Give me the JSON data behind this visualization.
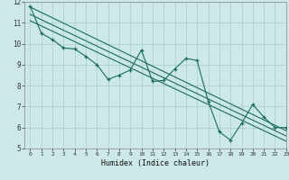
{
  "xlabel": "Humidex (Indice chaleur)",
  "xlim": [
    -0.5,
    23.0
  ],
  "ylim": [
    5,
    12
  ],
  "yticks": [
    5,
    6,
    7,
    8,
    9,
    10,
    11,
    12
  ],
  "xticks": [
    0,
    1,
    2,
    3,
    4,
    5,
    6,
    7,
    8,
    9,
    10,
    11,
    12,
    13,
    14,
    15,
    16,
    17,
    18,
    19,
    20,
    21,
    22,
    23
  ],
  "background_color": "#cce8e8",
  "grid_color": "#aacccc",
  "line_color": "#1a6b5e",
  "main_series_x": [
    0,
    1,
    2,
    3,
    4,
    5,
    6,
    7,
    8,
    9,
    10,
    11,
    12,
    13,
    14,
    15,
    16,
    17,
    18,
    19,
    20,
    21,
    22,
    23
  ],
  "main_series_y": [
    11.8,
    10.5,
    10.2,
    9.8,
    9.75,
    9.4,
    9.0,
    8.3,
    8.5,
    8.75,
    9.7,
    8.2,
    8.25,
    8.8,
    9.3,
    9.2,
    7.25,
    5.8,
    5.4,
    6.2,
    7.1,
    6.5,
    6.0,
    6.0
  ],
  "trend_lines": [
    {
      "x0": 0,
      "y0": 11.75,
      "x1": 23,
      "y1": 5.85
    },
    {
      "x0": 0,
      "y0": 11.4,
      "x1": 23,
      "y1": 5.6
    },
    {
      "x0": 0,
      "y0": 11.1,
      "x1": 23,
      "y1": 5.35
    }
  ]
}
